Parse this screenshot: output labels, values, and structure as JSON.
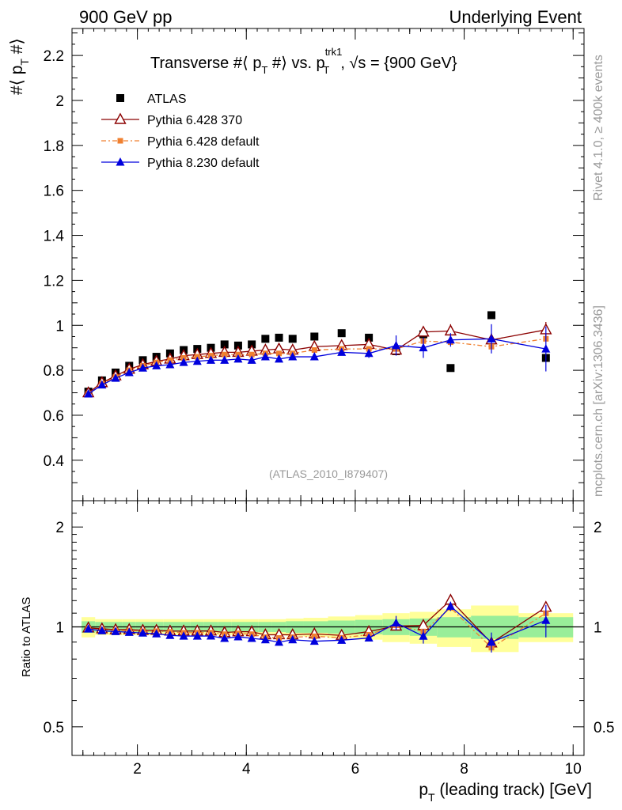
{
  "header": {
    "left": "900 GeV pp",
    "right": "Underlying Event"
  },
  "side": {
    "rivet": "Rivet 4.1.0, ≥ 400k events",
    "mcplots": "mcplots.cern.ch [arXiv:1306.3436]"
  },
  "chart_data": {
    "type": "scatter",
    "title": "Transverse #⟨ p_T #⟩ vs. p_T^trk1, √s = {900 GeV}",
    "title_parts": {
      "main": "Transverse #⟨ p",
      "sub1": "T",
      "mid": " #⟩ vs. p",
      "sup": "trk1",
      "sub2": "T",
      "tail": ", √s = {900 GeV}"
    },
    "ylabel": "#⟨ p_T #⟩",
    "ylabel_parts": {
      "main": "#⟨ p",
      "sub": "T",
      "tail": " #⟩"
    },
    "ratio_ylabel": "Ratio to ATLAS",
    "xlabel": "p_T (leading track) [GeV]",
    "xlabel_parts": {
      "main": "p",
      "sub": "T",
      "tail": " (leading track) [GeV]"
    },
    "watermark": "(ATLAS_2010_I879407)",
    "xlim": [
      0.8,
      10.2
    ],
    "ylim": [
      0.22,
      2.32
    ],
    "ratio_ylim": [
      0.41,
      2.4
    ],
    "x_ticks": [
      2,
      4,
      6,
      8,
      10
    ],
    "y_ticks": [
      0.4,
      0.6,
      0.8,
      1,
      1.2,
      1.4,
      1.6,
      1.8,
      2,
      2.2
    ],
    "y_tick_labels": [
      "0.4",
      "0.6",
      "0.8",
      "1",
      "1.2",
      "1.4",
      "1.6",
      "1.8",
      "2",
      "2.2"
    ],
    "ratio_ticks": [
      0.5,
      1,
      2
    ],
    "ratio_tick_labels": [
      "0.5",
      "1",
      "2"
    ],
    "legend": [
      {
        "name": "ATLAS",
        "marker": "square",
        "color": "#000000",
        "line": "none"
      },
      {
        "name": "Pythia 6.428 370",
        "marker": "open-triangle",
        "color": "#8b0000",
        "line": "solid"
      },
      {
        "name": "Pythia 6.428 default",
        "marker": "small-square",
        "color": "#f08030",
        "line": "dashdot"
      },
      {
        "name": "Pythia 8.230 default",
        "marker": "triangle",
        "color": "#0000dd",
        "line": "solid"
      }
    ],
    "x": [
      1.1,
      1.35,
      1.6,
      1.85,
      2.1,
      2.35,
      2.6,
      2.85,
      3.1,
      3.35,
      3.6,
      3.85,
      4.1,
      4.35,
      4.6,
      4.85,
      5.25,
      5.75,
      6.25,
      6.75,
      7.25,
      7.75,
      8.5,
      9.5
    ],
    "series": [
      {
        "name": "ATLAS",
        "values": [
          0.705,
          0.755,
          0.79,
          0.82,
          0.845,
          0.86,
          0.875,
          0.89,
          0.895,
          0.9,
          0.915,
          0.91,
          0.915,
          0.94,
          0.945,
          0.94,
          0.95,
          0.965,
          0.945,
          0.885,
          0.96,
          0.81,
          1.045,
          0.855
        ]
      },
      {
        "name": "Pythia 6.428 370",
        "values": [
          0.7,
          0.745,
          0.775,
          0.805,
          0.825,
          0.84,
          0.85,
          0.865,
          0.87,
          0.875,
          0.88,
          0.88,
          0.885,
          0.89,
          0.895,
          0.89,
          0.905,
          0.91,
          0.915,
          0.89,
          0.97,
          0.975,
          0.935,
          0.98
        ]
      },
      {
        "name": "Pythia 6.428 default",
        "values": [
          0.695,
          0.74,
          0.77,
          0.8,
          0.82,
          0.835,
          0.845,
          0.855,
          0.86,
          0.865,
          0.87,
          0.87,
          0.87,
          0.875,
          0.875,
          0.875,
          0.89,
          0.895,
          0.895,
          0.895,
          0.93,
          0.925,
          0.905,
          0.94
        ]
      },
      {
        "name": "Pythia 8.230 default",
        "values": [
          0.695,
          0.735,
          0.765,
          0.79,
          0.81,
          0.82,
          0.825,
          0.835,
          0.84,
          0.845,
          0.845,
          0.85,
          0.845,
          0.86,
          0.85,
          0.86,
          0.86,
          0.88,
          0.875,
          0.91,
          0.9,
          0.935,
          0.94,
          0.895
        ]
      }
    ],
    "errors": {
      "Pythia 8.230 default": [
        0.005,
        0.005,
        0.005,
        0.005,
        0.005,
        0.005,
        0.005,
        0.005,
        0.005,
        0.005,
        0.005,
        0.005,
        0.005,
        0.008,
        0.008,
        0.008,
        0.01,
        0.012,
        0.02,
        0.045,
        0.045,
        0.03,
        0.065,
        0.1
      ],
      "Pythia 6.428 370": [
        0.004,
        0.004,
        0.004,
        0.004,
        0.004,
        0.004,
        0.004,
        0.004,
        0.004,
        0.004,
        0.004,
        0.004,
        0.004,
        0.005,
        0.005,
        0.005,
        0.006,
        0.008,
        0.01,
        0.015,
        0.02,
        0.03,
        0.03,
        0.035
      ]
    },
    "ratio_band_inner": [
      0.04,
      0.035,
      0.035,
      0.035,
      0.035,
      0.035,
      0.035,
      0.035,
      0.035,
      0.035,
      0.035,
      0.035,
      0.035,
      0.035,
      0.035,
      0.04,
      0.04,
      0.045,
      0.05,
      0.055,
      0.06,
      0.07,
      0.08,
      0.07
    ],
    "ratio_band_outer": [
      0.07,
      0.055,
      0.055,
      0.055,
      0.055,
      0.055,
      0.055,
      0.055,
      0.055,
      0.055,
      0.055,
      0.055,
      0.055,
      0.055,
      0.055,
      0.06,
      0.065,
      0.075,
      0.085,
      0.1,
      0.11,
      0.13,
      0.16,
      0.1
    ]
  }
}
